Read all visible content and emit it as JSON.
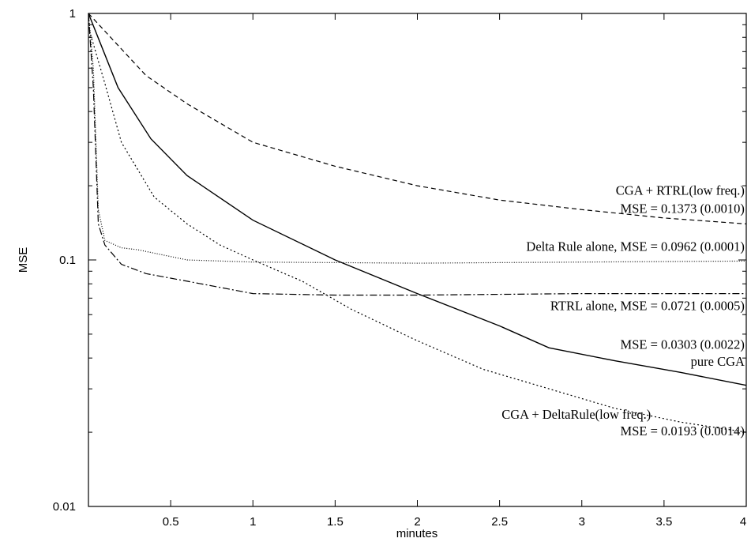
{
  "chart_data": {
    "type": "line",
    "title": "",
    "xlabel": "minutes",
    "ylabel": "MSE",
    "xlim": [
      0,
      4
    ],
    "ylim": [
      0.01,
      1
    ],
    "yscale": "log",
    "grid": false,
    "x_ticks": [
      0.5,
      1,
      1.5,
      2,
      2.5,
      3,
      3.5,
      4
    ],
    "x_tick_labels": [
      "0.5",
      "1",
      "1.5",
      "2",
      "2.5",
      "3",
      "3.5",
      "4"
    ],
    "y_ticks": [
      0.01,
      0.1,
      1
    ],
    "y_tick_labels": [
      "0.01",
      "0.1",
      "1"
    ],
    "series": [
      {
        "style": "dashed",
        "x": [
          0,
          0.35,
          0.6,
          1.0,
          1.5,
          2.0,
          2.5,
          3.0,
          3.5,
          4.0
        ],
        "y": [
          1.0,
          0.56,
          0.43,
          0.3,
          0.24,
          0.2,
          0.175,
          0.16,
          0.148,
          0.14
        ]
      },
      {
        "style": "solid",
        "x": [
          0,
          0.18,
          0.38,
          0.6,
          1.0,
          1.5,
          2.0,
          2.5,
          2.8,
          3.2,
          3.6,
          4.0
        ],
        "y": [
          1.0,
          0.5,
          0.31,
          0.22,
          0.145,
          0.1,
          0.073,
          0.054,
          0.044,
          0.039,
          0.035,
          0.031
        ]
      },
      {
        "style": "dotted",
        "x": [
          0,
          0.03,
          0.06,
          0.1,
          0.2,
          0.3,
          0.6,
          1.0,
          2.0,
          3.0,
          4.0
        ],
        "y": [
          1.0,
          0.6,
          0.16,
          0.12,
          0.112,
          0.11,
          0.1,
          0.098,
          0.097,
          0.098,
          0.099
        ]
      },
      {
        "style": "dash-dot",
        "x": [
          0,
          0.03,
          0.06,
          0.1,
          0.2,
          0.35,
          0.6,
          1.0,
          1.5,
          2.0,
          3.0,
          4.0
        ],
        "y": [
          1.0,
          0.5,
          0.14,
          0.115,
          0.096,
          0.088,
          0.082,
          0.073,
          0.072,
          0.072,
          0.073,
          0.073
        ]
      },
      {
        "style": "dense-dotted",
        "x": [
          0,
          0.1,
          0.2,
          0.4,
          0.6,
          0.8,
          1.0,
          1.3,
          1.6,
          2.0,
          2.4,
          2.8,
          3.2,
          3.6,
          4.0
        ],
        "y": [
          0.88,
          0.52,
          0.3,
          0.18,
          0.14,
          0.115,
          0.1,
          0.082,
          0.063,
          0.047,
          0.036,
          0.03,
          0.025,
          0.022,
          0.02
        ]
      }
    ],
    "annotations": [
      {
        "id": "cga_rtrl_1",
        "text": "CGA + RTRL(low freq.)",
        "x": 3.99,
        "y": 0.184
      },
      {
        "id": "cga_rtrl_2",
        "text": "MSE = 0.1373 (0.0010)",
        "x": 3.99,
        "y": 0.155
      },
      {
        "id": "delta",
        "text": "Delta Rule alone,  MSE = 0.0962 (0.0001)",
        "x": 3.99,
        "y": 0.109
      },
      {
        "id": "rtrl",
        "text": "RTRL alone,  MSE = 0.0721 (0.0005)",
        "x": 3.99,
        "y": 0.0625
      },
      {
        "id": "cga_1",
        "text": "MSE = 0.0303 (0.0022)",
        "x": 3.99,
        "y": 0.0436
      },
      {
        "id": "cga_2",
        "text": "pure CGA",
        "x": 3.99,
        "y": 0.0372
      },
      {
        "id": "cga_delta_1",
        "text": "CGA + DeltaRule(low freq.)",
        "x": 3.42,
        "y": 0.0227
      },
      {
        "id": "cga_delta_2",
        "text": "MSE = 0.0193 (0.0014)",
        "x": 3.99,
        "y": 0.0194
      }
    ]
  }
}
